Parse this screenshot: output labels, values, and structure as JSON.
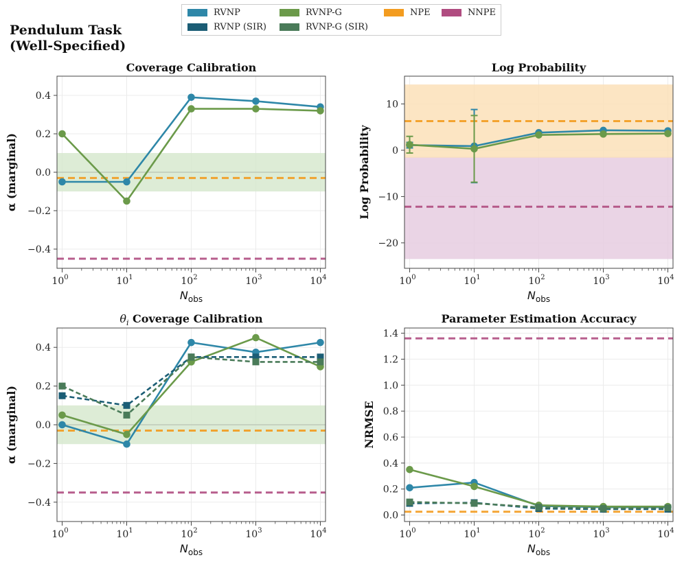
{
  "figure": {
    "suptitle_line1": "Pendulum Task",
    "suptitle_line2": "(Well-Specified)"
  },
  "colors": {
    "RVNP": "#2e87a8",
    "RVNP_SIR": "#1b5d75",
    "RVNP_G": "#6b9a4a",
    "RVNP_G_SIR": "#4a7b59",
    "NPE": "#f39c1f",
    "NNPE": "#b04c80",
    "band_green": "#d7e9cf",
    "band_orange": "#fbe1b8",
    "band_purple": "#e6cce0",
    "zero_line": "#b9c2b4"
  },
  "legend": [
    {
      "label": "RVNP",
      "color_key": "RVNP"
    },
    {
      "label": "RVNP (SIR)",
      "color_key": "RVNP_SIR"
    },
    {
      "label": "RVNP-G",
      "color_key": "RVNP_G"
    },
    {
      "label": "RVNP-G (SIR)",
      "color_key": "RVNP_G_SIR"
    },
    {
      "label": "NPE",
      "color_key": "NPE"
    },
    {
      "label": "NNPE",
      "color_key": "NNPE"
    }
  ],
  "chart_data": [
    {
      "id": "coverage",
      "type": "line",
      "title": "Coverage Calibration",
      "xlabel": "N_obs",
      "ylabel": "α (marginal)",
      "xscale": "log",
      "x": [
        1,
        10,
        100,
        1000,
        10000
      ],
      "x_tick_exponents": [
        0,
        1,
        2,
        3,
        4
      ],
      "ylim": [
        -0.5,
        0.5
      ],
      "yticks": [
        -0.4,
        -0.2,
        0.0,
        0.2,
        0.4
      ],
      "ytick_labels": [
        "−0.4",
        "−0.2",
        "0.0",
        "0.2",
        "0.4"
      ],
      "bands": [
        {
          "from": -0.1,
          "to": 0.1,
          "color_key": "band_green"
        }
      ],
      "zero_line": 0.0,
      "hlines": [
        {
          "name": "NPE",
          "y": -0.03,
          "color_key": "NPE"
        },
        {
          "name": "NNPE",
          "y": -0.45,
          "color_key": "NNPE"
        }
      ],
      "series": [
        {
          "name": "RVNP",
          "color_key": "RVNP",
          "marker": "circle",
          "dashed": false,
          "values": [
            -0.05,
            -0.05,
            0.39,
            0.37,
            0.34
          ]
        },
        {
          "name": "RVNP-G",
          "color_key": "RVNP_G",
          "marker": "circle",
          "dashed": false,
          "values": [
            0.2,
            -0.15,
            0.33,
            0.33,
            0.32
          ]
        }
      ]
    },
    {
      "id": "logprob",
      "type": "line",
      "title": "Log Probability",
      "xlabel": "N_obs",
      "ylabel": "Log Probability",
      "xscale": "log",
      "x": [
        1,
        10,
        100,
        1000,
        10000
      ],
      "x_tick_exponents": [
        0,
        1,
        2,
        3,
        4
      ],
      "ylim": [
        -25.5,
        16.0
      ],
      "yticks": [
        -20,
        -10,
        0,
        10
      ],
      "ytick_labels": [
        "−20",
        "−10",
        "0",
        "10"
      ],
      "bands": [
        {
          "from": -23.5,
          "to": -1.4,
          "color_key": "band_purple"
        },
        {
          "from": -1.6,
          "to": 14.2,
          "color_key": "band_orange"
        }
      ],
      "hlines": [
        {
          "name": "NPE",
          "y": 6.3,
          "color_key": "NPE"
        },
        {
          "name": "NNPE",
          "y": -12.2,
          "color_key": "NNPE"
        }
      ],
      "series": [
        {
          "name": "RVNP",
          "color_key": "RVNP",
          "marker": "circle",
          "dashed": false,
          "values": [
            1.1,
            0.9,
            3.8,
            4.3,
            4.2
          ],
          "err_low": [
            0.5,
            -7.0,
            3.8,
            4.3,
            4.2
          ],
          "err_high": [
            1.7,
            8.8,
            3.8,
            4.3,
            4.2
          ]
        },
        {
          "name": "RVNP-G",
          "color_key": "RVNP_G",
          "marker": "circle",
          "dashed": false,
          "values": [
            1.2,
            0.3,
            3.3,
            3.5,
            3.6
          ],
          "err_low": [
            -0.6,
            -6.9,
            3.3,
            3.5,
            3.6
          ],
          "err_high": [
            3.0,
            7.5,
            3.3,
            3.5,
            3.6
          ]
        }
      ]
    },
    {
      "id": "theta_coverage",
      "type": "line",
      "title": "θi Coverage Calibration",
      "title_symbol": "θ",
      "title_subscript": "i",
      "title_rest": "Coverage Calibration",
      "xlabel": "N_obs",
      "ylabel": "α (marginal)",
      "xscale": "log",
      "x": [
        1,
        10,
        100,
        1000,
        10000
      ],
      "x_tick_exponents": [
        0,
        1,
        2,
        3,
        4
      ],
      "ylim": [
        -0.5,
        0.5
      ],
      "yticks": [
        -0.4,
        -0.2,
        0.0,
        0.2,
        0.4
      ],
      "ytick_labels": [
        "−0.4",
        "−0.2",
        "0.0",
        "0.2",
        "0.4"
      ],
      "bands": [
        {
          "from": -0.1,
          "to": 0.1,
          "color_key": "band_green"
        }
      ],
      "zero_line": 0.0,
      "hlines": [
        {
          "name": "NPE",
          "y": -0.03,
          "color_key": "NPE"
        },
        {
          "name": "NNPE",
          "y": -0.35,
          "color_key": "NNPE"
        }
      ],
      "series": [
        {
          "name": "RVNP",
          "color_key": "RVNP",
          "marker": "circle",
          "dashed": false,
          "values": [
            0.0,
            -0.1,
            0.425,
            0.375,
            0.425
          ]
        },
        {
          "name": "RVNP-G",
          "color_key": "RVNP_G",
          "marker": "circle",
          "dashed": false,
          "values": [
            0.05,
            -0.05,
            0.325,
            0.45,
            0.3
          ]
        },
        {
          "name": "RVNP (SIR)",
          "color_key": "RVNP_SIR",
          "marker": "square",
          "dashed": true,
          "values": [
            0.15,
            0.1,
            0.35,
            0.35,
            0.35
          ]
        },
        {
          "name": "RVNP-G (SIR)",
          "color_key": "RVNP_G_SIR",
          "marker": "square",
          "dashed": true,
          "values": [
            0.2,
            0.05,
            0.35,
            0.325,
            0.325
          ]
        }
      ]
    },
    {
      "id": "nrmse",
      "type": "line",
      "title": "Parameter Estimation Accuracy",
      "xlabel": "N_obs",
      "ylabel": "NRMSE",
      "xscale": "log",
      "x": [
        1,
        10,
        100,
        1000,
        10000
      ],
      "x_tick_exponents": [
        0,
        1,
        2,
        3,
        4
      ],
      "ylim": [
        -0.05,
        1.44
      ],
      "yticks": [
        0.0,
        0.2,
        0.4,
        0.6,
        0.8,
        1.0,
        1.2,
        1.4
      ],
      "ytick_labels": [
        "0.0",
        "0.2",
        "0.4",
        "0.6",
        "0.8",
        "1.0",
        "1.2",
        "1.4"
      ],
      "bands": [],
      "hlines": [
        {
          "name": "NPE",
          "y": 0.025,
          "color_key": "NPE"
        },
        {
          "name": "NNPE",
          "y": 1.36,
          "color_key": "NNPE"
        }
      ],
      "series": [
        {
          "name": "RVNP",
          "color_key": "RVNP",
          "marker": "circle",
          "dashed": false,
          "values": [
            0.21,
            0.25,
            0.07,
            0.06,
            0.06
          ]
        },
        {
          "name": "RVNP-G",
          "color_key": "RVNP_G",
          "marker": "circle",
          "dashed": false,
          "values": [
            0.35,
            0.22,
            0.075,
            0.065,
            0.065
          ]
        },
        {
          "name": "RVNP (SIR)",
          "color_key": "RVNP_SIR",
          "marker": "square",
          "dashed": true,
          "values": [
            0.09,
            0.095,
            0.05,
            0.045,
            0.045
          ]
        },
        {
          "name": "RVNP-G (SIR)",
          "color_key": "RVNP_G_SIR",
          "marker": "square",
          "dashed": true,
          "values": [
            0.1,
            0.09,
            0.06,
            0.05,
            0.055
          ]
        }
      ]
    }
  ]
}
